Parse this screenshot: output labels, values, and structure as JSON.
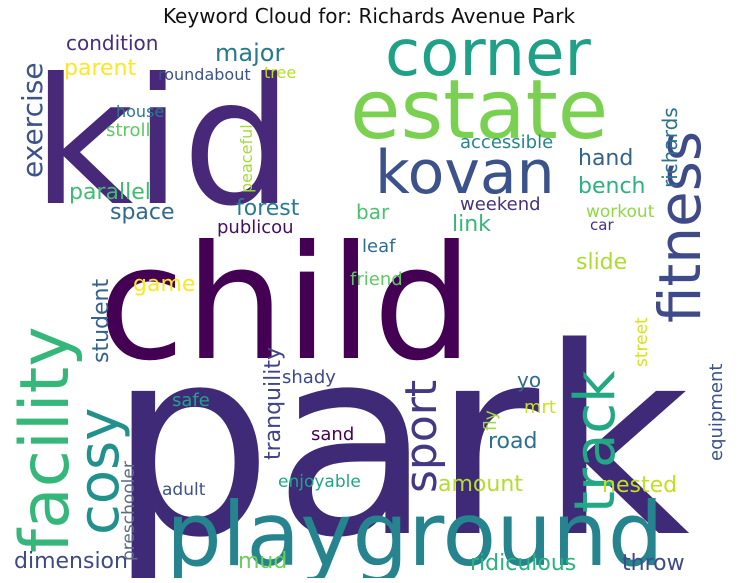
{
  "chart_data": {
    "type": "wordcloud",
    "title": "Keyword Cloud for: Richards Avenue Park",
    "words": [
      {
        "text": "park",
        "color": "#3f2a77"
      },
      {
        "text": "child",
        "color": "#440154"
      },
      {
        "text": "kid",
        "color": "#482878"
      },
      {
        "text": "playground",
        "color": "#25848e"
      },
      {
        "text": "estate",
        "color": "#7ad151"
      },
      {
        "text": "corner",
        "color": "#1fa187"
      },
      {
        "text": "fitness",
        "color": "#3e4a89"
      },
      {
        "text": "facility",
        "color": "#35b779"
      },
      {
        "text": "kovan",
        "color": "#3b528b"
      },
      {
        "text": "cosy",
        "color": "#21918c"
      },
      {
        "text": "track",
        "color": "#22a884"
      },
      {
        "text": "sport",
        "color": "#443983"
      },
      {
        "text": "exercise",
        "color": "#3b528b"
      },
      {
        "text": "condition",
        "color": "#472d7b"
      },
      {
        "text": "major",
        "color": "#29798e"
      },
      {
        "text": "parent",
        "color": "#fde725"
      },
      {
        "text": "roundabout",
        "color": "#3b528b"
      },
      {
        "text": "tree",
        "color": "#b5de2b"
      },
      {
        "text": "house",
        "color": "#2a788e"
      },
      {
        "text": "stroll",
        "color": "#5ec962"
      },
      {
        "text": "peaceful",
        "color": "#a5db36"
      },
      {
        "text": "richards",
        "color": "#2c728e"
      },
      {
        "text": "accessible",
        "color": "#25858e"
      },
      {
        "text": "hand",
        "color": "#33638d"
      },
      {
        "text": "bench",
        "color": "#2db27d"
      },
      {
        "text": "parallel",
        "color": "#3fbc73"
      },
      {
        "text": "space",
        "color": "#31688e"
      },
      {
        "text": "forest",
        "color": "#287c8e"
      },
      {
        "text": "bar",
        "color": "#4ac16d"
      },
      {
        "text": "weekend",
        "color": "#46327e"
      },
      {
        "text": "workout",
        "color": "#8fd744"
      },
      {
        "text": "publicou",
        "color": "#470d60"
      },
      {
        "text": "link",
        "color": "#35b779"
      },
      {
        "text": "leaf",
        "color": "#2e6e8e"
      },
      {
        "text": "car",
        "color": "#46307e"
      },
      {
        "text": "slide",
        "color": "#addc30"
      },
      {
        "text": "student",
        "color": "#34618d"
      },
      {
        "text": "game",
        "color": "#fde725"
      },
      {
        "text": "friend",
        "color": "#5ec962"
      },
      {
        "text": "street",
        "color": "#d8e219"
      },
      {
        "text": "tranquility",
        "color": "#414487"
      },
      {
        "text": "shady",
        "color": "#3e4989"
      },
      {
        "text": "yo",
        "color": "#2f6c8e"
      },
      {
        "text": "equipment",
        "color": "#3b528b"
      },
      {
        "text": "safe",
        "color": "#20a486"
      },
      {
        "text": "mrt",
        "color": "#cae11f"
      },
      {
        "text": "fly",
        "color": "#a0da39"
      },
      {
        "text": "preschooler",
        "color": "#5d6a89"
      },
      {
        "text": "sand",
        "color": "#440154"
      },
      {
        "text": "road",
        "color": "#2d708e"
      },
      {
        "text": "amount",
        "color": "#b2dd2d"
      },
      {
        "text": "adult",
        "color": "#3b528b"
      },
      {
        "text": "enjoyable",
        "color": "#21a585"
      },
      {
        "text": "nested",
        "color": "#c2df23"
      },
      {
        "text": "dimension",
        "color": "#3f4889"
      },
      {
        "text": "mud",
        "color": "#6ccd5a"
      },
      {
        "text": "ridiculous",
        "color": "#2db27d"
      },
      {
        "text": "throw",
        "color": "#3e4a89"
      }
    ]
  }
}
